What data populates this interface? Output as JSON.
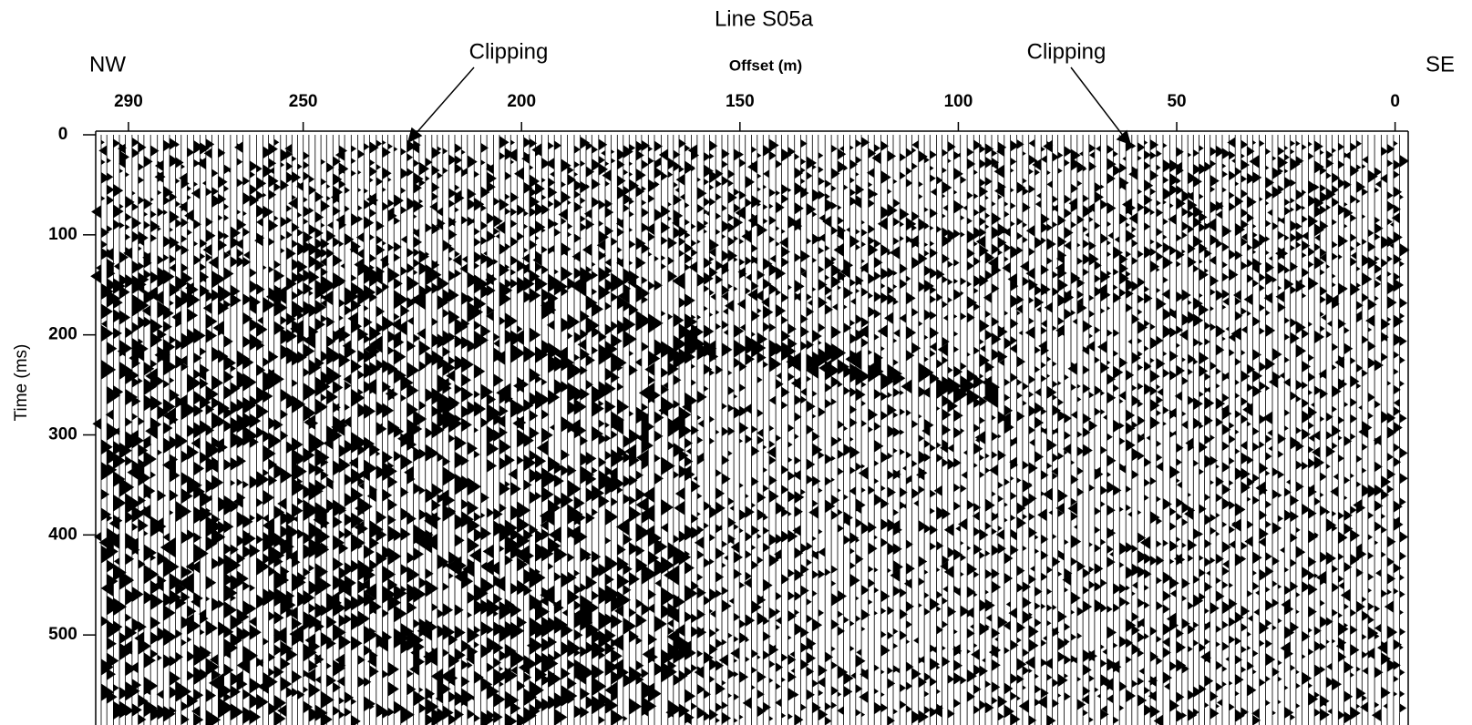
{
  "chart_data": {
    "type": "seismic",
    "title": "Line S05a",
    "x_label": "Offset (m)",
    "y_label": "Time (ms)",
    "left_direction": "NW",
    "right_direction": "SE",
    "annotations": [
      "Clipping",
      "Clipping"
    ],
    "xlim": [
      297.5,
      -3
    ],
    "xticks": [
      290,
      250,
      200,
      150,
      100,
      50,
      0
    ],
    "ylim": [
      0,
      590
    ],
    "yticks": [
      0,
      100,
      200,
      300,
      400,
      500
    ]
  }
}
